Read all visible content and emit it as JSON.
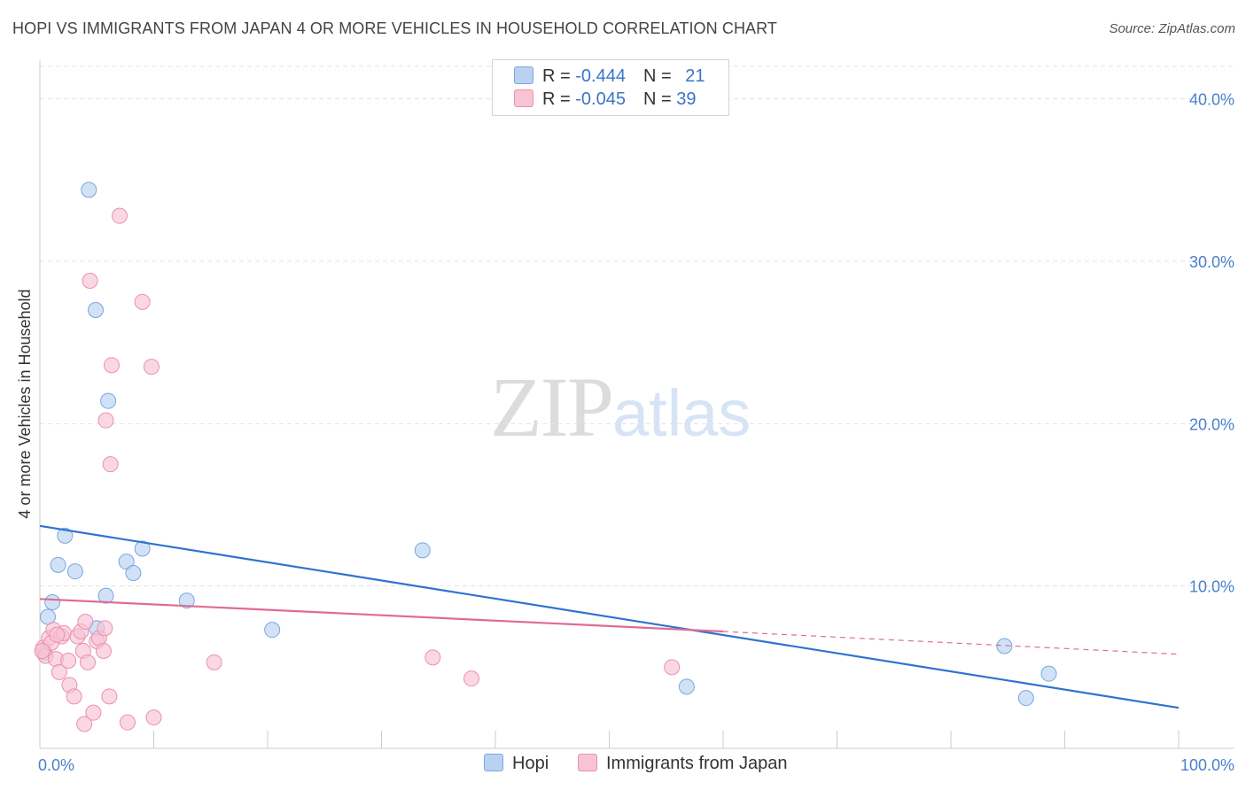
{
  "header": {
    "title": "HOPI VS IMMIGRANTS FROM JAPAN 4 OR MORE VEHICLES IN HOUSEHOLD CORRELATION CHART",
    "source": "Source: ZipAtlas.com"
  },
  "watermark": {
    "zip": "ZIP",
    "atlas": "atlas"
  },
  "legend": {
    "rows": [
      {
        "r_label": "R = ",
        "r_value": "-0.444",
        "n_label": "N = ",
        "n_value": "21"
      },
      {
        "r_label": "R = ",
        "r_value": "-0.045",
        "n_label": "N = ",
        "n_value": "39"
      }
    ]
  },
  "colors": {
    "hopi_fill": "#b9d2f2",
    "hopi_stroke": "#7aa6de",
    "hopi_line": "#2f73d0",
    "japan_fill": "#f8c3d4",
    "japan_stroke": "#ec8fae",
    "japan_line": "#e06b95",
    "grid": "#e3e3e3",
    "axis_text": "#4a7fcc"
  },
  "chart_data": {
    "type": "scatter",
    "title": "HOPI VS IMMIGRANTS FROM JAPAN 4 OR MORE VEHICLES IN HOUSEHOLD CORRELATION CHART",
    "xlabel": "",
    "ylabel": "4 or more Vehicles in Household",
    "xlim": [
      0,
      100
    ],
    "ylim": [
      0,
      42
    ],
    "x_tick_labels": [
      "0.0%",
      "100.0%"
    ],
    "y_ticks": [
      10,
      20,
      30,
      40
    ],
    "y_tick_labels": [
      "10.0%",
      "20.0%",
      "30.0%",
      "40.0%"
    ],
    "grid": true,
    "series": [
      {
        "name": "Hopi",
        "R": -0.444,
        "N": 21,
        "points": [
          [
            0.4,
            5.9
          ],
          [
            0.7,
            8.1
          ],
          [
            1.1,
            9.0
          ],
          [
            1.6,
            11.3
          ],
          [
            2.2,
            13.1
          ],
          [
            3.1,
            10.9
          ],
          [
            4.3,
            34.4
          ],
          [
            4.9,
            27.0
          ],
          [
            5.0,
            7.4
          ],
          [
            5.8,
            9.4
          ],
          [
            6.0,
            21.4
          ],
          [
            7.6,
            11.5
          ],
          [
            8.2,
            10.8
          ],
          [
            9.0,
            12.3
          ],
          [
            12.9,
            9.1
          ],
          [
            20.4,
            7.3
          ],
          [
            33.6,
            12.2
          ],
          [
            56.8,
            3.8
          ],
          [
            84.7,
            6.3
          ],
          [
            86.6,
            3.1
          ],
          [
            88.6,
            4.6
          ]
        ],
        "trend": {
          "x": [
            0,
            100
          ],
          "y": [
            13.7,
            2.5
          ]
        }
      },
      {
        "name": "Immigrants from Japan",
        "R": -0.045,
        "N": 39,
        "points": [
          [
            0.3,
            6.2
          ],
          [
            0.5,
            5.7
          ],
          [
            0.8,
            6.8
          ],
          [
            1.0,
            6.5
          ],
          [
            1.2,
            7.3
          ],
          [
            1.4,
            5.5
          ],
          [
            1.7,
            4.7
          ],
          [
            1.9,
            6.9
          ],
          [
            2.1,
            7.1
          ],
          [
            2.5,
            5.4
          ],
          [
            2.6,
            3.9
          ],
          [
            3.0,
            3.2
          ],
          [
            3.3,
            6.9
          ],
          [
            3.6,
            7.2
          ],
          [
            3.8,
            6.0
          ],
          [
            4.0,
            7.8
          ],
          [
            3.9,
            1.5
          ],
          [
            4.2,
            5.3
          ],
          [
            4.4,
            28.8
          ],
          [
            4.7,
            2.2
          ],
          [
            5.0,
            6.6
          ],
          [
            5.2,
            6.8
          ],
          [
            5.6,
            6.0
          ],
          [
            5.7,
            7.4
          ],
          [
            5.8,
            20.2
          ],
          [
            6.1,
            3.2
          ],
          [
            6.2,
            17.5
          ],
          [
            6.3,
            23.6
          ],
          [
            7.0,
            32.8
          ],
          [
            7.7,
            1.6
          ],
          [
            9.0,
            27.5
          ],
          [
            9.8,
            23.5
          ],
          [
            10.0,
            1.9
          ],
          [
            15.3,
            5.3
          ],
          [
            34.5,
            5.6
          ],
          [
            37.9,
            4.3
          ],
          [
            55.5,
            5.0
          ],
          [
            0.2,
            6.0
          ],
          [
            1.5,
            7.0
          ]
        ],
        "trend": {
          "x": [
            0,
            60
          ],
          "y": [
            9.2,
            7.2
          ]
        },
        "trend_dashed": {
          "x": [
            60,
            100
          ],
          "y": [
            7.2,
            5.8
          ]
        }
      }
    ]
  }
}
